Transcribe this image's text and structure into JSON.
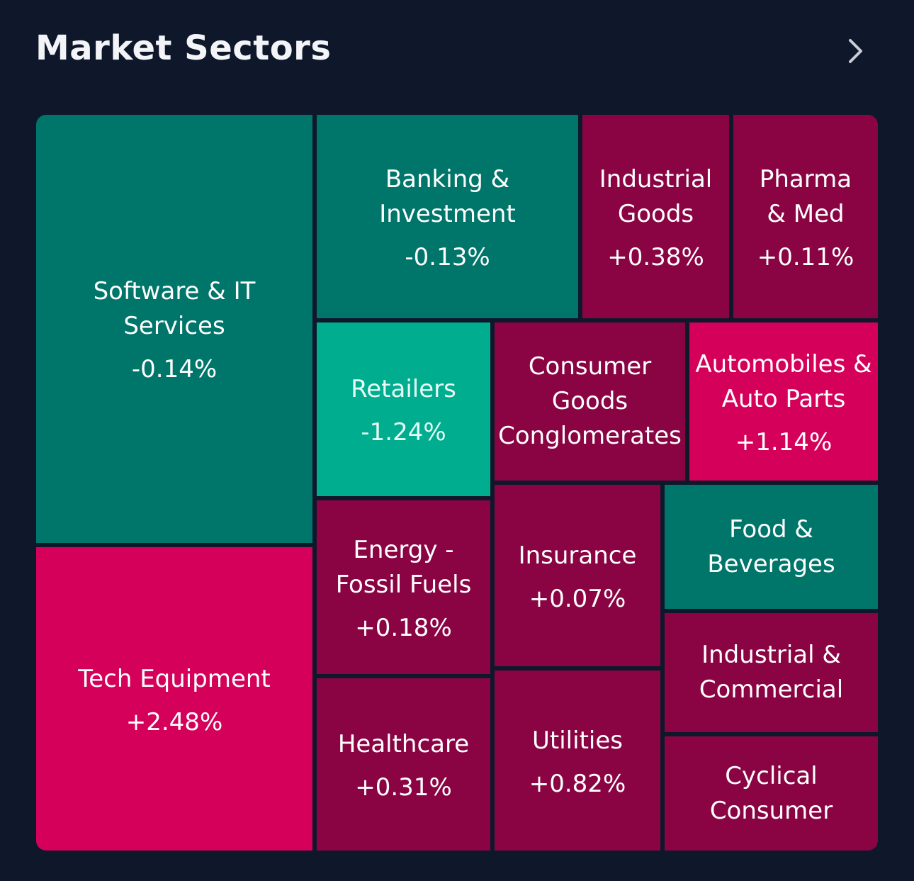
{
  "header": {
    "title": "Market Sectors",
    "more_icon": "chevron-right-icon"
  },
  "colors": {
    "background": "#0f172b",
    "positive_dark": "#8a0444",
    "positive_bright": "#d4005a",
    "negative_dark": "#00756a",
    "negative_bright": "#00ad8f"
  },
  "sectors": [
    {
      "name": "Software & IT Services",
      "change": "-0.14%"
    },
    {
      "name": "Banking & Investment",
      "change": "-0.13%"
    },
    {
      "name": "Industrial Goods",
      "change": "+0.38%"
    },
    {
      "name": "Pharma & Med",
      "change": "+0.11%"
    },
    {
      "name": "Retailers",
      "change": "-1.24%"
    },
    {
      "name": "Consumer Goods Conglomerates",
      "change": ""
    },
    {
      "name": "Automobiles & Auto Parts",
      "change": "+1.14%"
    },
    {
      "name": "Tech Equipment",
      "change": "+2.48%"
    },
    {
      "name": "Energy - Fossil Fuels",
      "change": "+0.18%"
    },
    {
      "name": "Insurance",
      "change": "+0.07%"
    },
    {
      "name": "Food & Beverages",
      "change": ""
    },
    {
      "name": "Industrial & Commercial",
      "change": ""
    },
    {
      "name": "Healthcare",
      "change": "+0.31%"
    },
    {
      "name": "Utilities",
      "change": "+0.82%"
    },
    {
      "name": "Cyclical Consumer",
      "change": ""
    }
  ]
}
